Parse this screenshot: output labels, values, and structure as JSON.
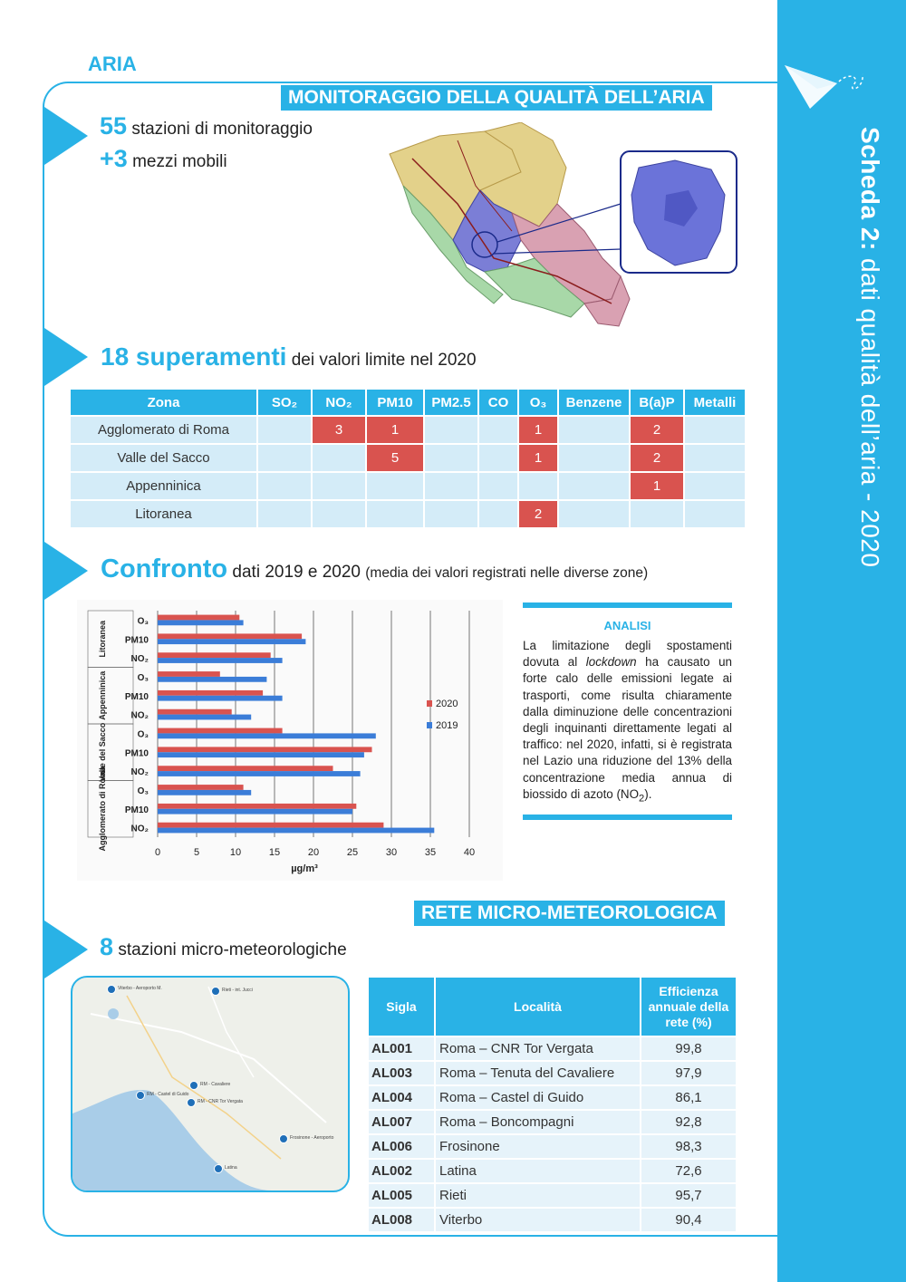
{
  "band": {
    "title_bold": "Scheda 2:",
    "title_rest": " dati qualità dell’aria - 2020"
  },
  "header": {
    "aria": "ARIA",
    "monitoring_title": "MONITORAGGIO DELLA QUALITÀ DELL’ARIA"
  },
  "stations": {
    "count": "55",
    "label": "stazioni di monitoraggio",
    "mobile_count": "+3",
    "mobile_label": "mezzi mobili"
  },
  "exceedances": {
    "count": "18 superamenti",
    "label": "dei valori limite nel 2020",
    "headers": [
      "Zona",
      "SO₂",
      "NO₂",
      "PM10",
      "PM2.5",
      "CO",
      "O₃",
      "Benzene",
      "B(a)P",
      "Metalli"
    ],
    "rows": [
      {
        "zona": "Agglomerato di Roma",
        "cells": [
          "",
          "3",
          "1",
          "",
          "",
          "1",
          "",
          "2",
          ""
        ]
      },
      {
        "zona": "Valle del Sacco",
        "cells": [
          "",
          "",
          "5",
          "",
          "",
          "1",
          "",
          "2",
          ""
        ]
      },
      {
        "zona": "Appenninica",
        "cells": [
          "",
          "",
          "",
          "",
          "",
          "",
          "",
          "1",
          ""
        ]
      },
      {
        "zona": "Litoranea",
        "cells": [
          "",
          "",
          "",
          "",
          "",
          "2",
          "",
          "",
          ""
        ]
      }
    ]
  },
  "confronto": {
    "title": "Confronto",
    "subtitle": "dati 2019 e 2020",
    "note": "(media dei valori registrati nelle diverse zone)"
  },
  "chart_data": {
    "type": "bar",
    "orientation": "horizontal",
    "xlabel": "µg/m³",
    "xlim": [
      0,
      40
    ],
    "xticks": [
      0,
      5,
      10,
      15,
      20,
      25,
      30,
      35,
      40
    ],
    "groups": [
      "Litoranea",
      "Appenninica",
      "Valle del Sacco",
      "Agglomerato di Roma"
    ],
    "categories": [
      "O₃",
      "PM10",
      "NO₂",
      "O₃",
      "PM10",
      "NO₂",
      "O₃",
      "PM10",
      "NO₂",
      "O₃",
      "PM10",
      "NO₂"
    ],
    "category_groups": [
      "Litoranea",
      "Litoranea",
      "Litoranea",
      "Appenninica",
      "Appenninica",
      "Appenninica",
      "Valle del Sacco",
      "Valle del Sacco",
      "Valle del Sacco",
      "Agglomerato di Roma",
      "Agglomerato di Roma",
      "Agglomerato di Roma"
    ],
    "series": [
      {
        "name": "2020",
        "color": "#d9534f",
        "values": [
          10.5,
          18.5,
          14.5,
          8,
          13.5,
          9.5,
          16,
          27.5,
          22.5,
          11,
          25.5,
          29
        ]
      },
      {
        "name": "2019",
        "color": "#3b7dd8",
        "values": [
          11,
          19,
          16,
          14,
          16,
          12,
          28,
          26.5,
          26,
          12,
          25,
          35.5
        ]
      }
    ],
    "legend_position": "right",
    "grid": true
  },
  "analisi": {
    "title": "ANALISI",
    "text_1": "La limitazione degli spostamenti dovuta al ",
    "text_italic": "lockdown",
    "text_2": " ha causato un forte calo delle emissioni legate ai trasporti, come risulta chiaramente dalla diminuzione delle concentrazioni degli inquinanti direttamente legati al traffico: nel 2020, infatti, si è registrata nel Lazio una riduzione del 13% della concentrazione media annua di biossido di azoto (NO",
    "text_sub": "2",
    "text_3": ")."
  },
  "meteo_section": {
    "title": "RETE MICRO-METEOROLOGICA",
    "count": "8",
    "label": "stazioni micro-meteorologiche"
  },
  "map_labels": [
    "Viterbo - Aeroporto M.",
    "Rieti - int. Jucci",
    "RM - Cavaliere",
    "RM - Castel di Guido",
    "RM - CNR Tor Vergata",
    "Frosinone - Aeroporto",
    "Latina"
  ],
  "meteo_table": {
    "headers": [
      "Sigla",
      "Località",
      "Efficienza annuale della rete (%)"
    ],
    "rows": [
      {
        "sigla": "AL001",
        "localita": "Roma – CNR Tor Vergata",
        "eff": "99,8"
      },
      {
        "sigla": "AL003",
        "localita": "Roma – Tenuta del Cavaliere",
        "eff": "97,9"
      },
      {
        "sigla": "AL004",
        "localita": "Roma – Castel di Guido",
        "eff": "86,1"
      },
      {
        "sigla": "AL007",
        "localita": "Roma – Boncompagni",
        "eff": "92,8"
      },
      {
        "sigla": "AL006",
        "localita": "Frosinone",
        "eff": "98,3"
      },
      {
        "sigla": "AL002",
        "localita": "Latina",
        "eff": "72,6"
      },
      {
        "sigla": "AL005",
        "localita": "Rieti",
        "eff": "95,7"
      },
      {
        "sigla": "AL008",
        "localita": "Viterbo",
        "eff": "90,4"
      }
    ]
  },
  "colors": {
    "accent": "#29b2e6",
    "exceed": "#d9534f",
    "cell": "#d4ecf8"
  },
  "icons": {
    "corner": "paper-plane-icon"
  }
}
